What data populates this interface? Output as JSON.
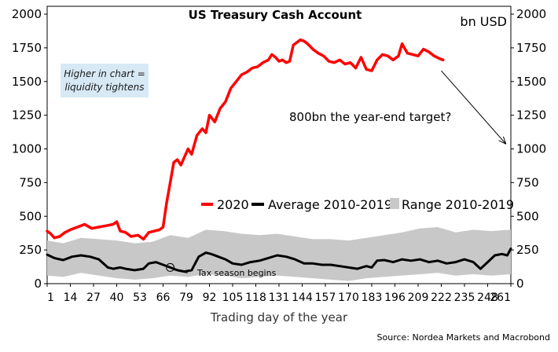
{
  "chart_data": {
    "type": "line",
    "title": "US Treasury Cash Account",
    "unit_label": "bn USD",
    "xlabel": "Trading day of the year",
    "source": "Source: Nordea Markets and Macrobond",
    "xlim": [
      1,
      261
    ],
    "ylim": [
      0,
      2000
    ],
    "y_ticks": [
      "0",
      "250",
      "500",
      "750",
      "1000",
      "1250",
      "1500",
      "1750",
      "2000"
    ],
    "x_ticks": [
      "1",
      "14",
      "27",
      "40",
      "53",
      "66",
      "79",
      "92",
      "105",
      "118",
      "131",
      "144",
      "157",
      "170",
      "183",
      "196",
      "209",
      "222",
      "235",
      "248",
      "261"
    ],
    "legend": {
      "position": "middle-right",
      "items": [
        {
          "label": "2020",
          "color": "#ff0000",
          "style": "line"
        },
        {
          "label": "Average 2010-2019",
          "color": "#000000",
          "style": "line"
        },
        {
          "label": "Range 2010-2019",
          "color": "#c8c8c8",
          "style": "box"
        }
      ]
    },
    "annotations": {
      "note": [
        "Higher in chart =",
        "liquidity tightens"
      ],
      "target": "800bn the year-end target?",
      "tax": "Tax season begins"
    },
    "series": [
      {
        "name": "2020",
        "color": "#ff0000",
        "points": [
          [
            1,
            390
          ],
          [
            3,
            370
          ],
          [
            5,
            340
          ],
          [
            8,
            350
          ],
          [
            11,
            380
          ],
          [
            14,
            400
          ],
          [
            18,
            420
          ],
          [
            22,
            440
          ],
          [
            26,
            410
          ],
          [
            30,
            420
          ],
          [
            34,
            430
          ],
          [
            38,
            440
          ],
          [
            40,
            460
          ],
          [
            42,
            390
          ],
          [
            45,
            380
          ],
          [
            48,
            350
          ],
          [
            52,
            360
          ],
          [
            55,
            330
          ],
          [
            58,
            380
          ],
          [
            61,
            390
          ],
          [
            64,
            400
          ],
          [
            66,
            420
          ],
          [
            68,
            600
          ],
          [
            70,
            750
          ],
          [
            72,
            900
          ],
          [
            74,
            920
          ],
          [
            76,
            880
          ],
          [
            78,
            940
          ],
          [
            80,
            1000
          ],
          [
            82,
            960
          ],
          [
            85,
            1100
          ],
          [
            88,
            1150
          ],
          [
            90,
            1120
          ],
          [
            92,
            1250
          ],
          [
            95,
            1200
          ],
          [
            98,
            1300
          ],
          [
            101,
            1350
          ],
          [
            104,
            1450
          ],
          [
            107,
            1500
          ],
          [
            110,
            1550
          ],
          [
            113,
            1570
          ],
          [
            116,
            1600
          ],
          [
            119,
            1610
          ],
          [
            122,
            1640
          ],
          [
            125,
            1660
          ],
          [
            127,
            1700
          ],
          [
            129,
            1680
          ],
          [
            131,
            1650
          ],
          [
            133,
            1660
          ],
          [
            135,
            1640
          ],
          [
            137,
            1650
          ],
          [
            139,
            1770
          ],
          [
            141,
            1790
          ],
          [
            143,
            1810
          ],
          [
            145,
            1800
          ],
          [
            147,
            1780
          ],
          [
            150,
            1740
          ],
          [
            153,
            1710
          ],
          [
            156,
            1690
          ],
          [
            159,
            1650
          ],
          [
            162,
            1640
          ],
          [
            165,
            1660
          ],
          [
            168,
            1630
          ],
          [
            171,
            1640
          ],
          [
            174,
            1600
          ],
          [
            177,
            1680
          ],
          [
            180,
            1590
          ],
          [
            183,
            1580
          ],
          [
            186,
            1660
          ],
          [
            189,
            1700
          ],
          [
            192,
            1690
          ],
          [
            195,
            1660
          ],
          [
            198,
            1690
          ],
          [
            200,
            1780
          ],
          [
            203,
            1710
          ],
          [
            206,
            1700
          ],
          [
            209,
            1690
          ],
          [
            212,
            1740
          ],
          [
            215,
            1720
          ],
          [
            218,
            1690
          ],
          [
            221,
            1670
          ],
          [
            223,
            1660
          ]
        ]
      },
      {
        "name": "Average 2010-2019",
        "color": "#000000",
        "points": [
          [
            1,
            215
          ],
          [
            5,
            190
          ],
          [
            10,
            175
          ],
          [
            15,
            200
          ],
          [
            20,
            210
          ],
          [
            25,
            200
          ],
          [
            30,
            180
          ],
          [
            35,
            120
          ],
          [
            38,
            110
          ],
          [
            42,
            120
          ],
          [
            45,
            110
          ],
          [
            50,
            100
          ],
          [
            55,
            110
          ],
          [
            58,
            150
          ],
          [
            62,
            160
          ],
          [
            66,
            140
          ],
          [
            70,
            120
          ],
          [
            74,
            100
          ],
          [
            78,
            90
          ],
          [
            82,
            100
          ],
          [
            86,
            200
          ],
          [
            90,
            230
          ],
          [
            93,
            220
          ],
          [
            97,
            200
          ],
          [
            101,
            180
          ],
          [
            105,
            150
          ],
          [
            110,
            140
          ],
          [
            115,
            160
          ],
          [
            120,
            170
          ],
          [
            125,
            190
          ],
          [
            130,
            210
          ],
          [
            135,
            200
          ],
          [
            140,
            180
          ],
          [
            145,
            150
          ],
          [
            150,
            150
          ],
          [
            155,
            140
          ],
          [
            160,
            140
          ],
          [
            165,
            130
          ],
          [
            170,
            120
          ],
          [
            175,
            110
          ],
          [
            180,
            130
          ],
          [
            183,
            120
          ],
          [
            186,
            170
          ],
          [
            190,
            175
          ],
          [
            195,
            160
          ],
          [
            200,
            180
          ],
          [
            205,
            170
          ],
          [
            210,
            180
          ],
          [
            215,
            160
          ],
          [
            220,
            170
          ],
          [
            225,
            150
          ],
          [
            230,
            160
          ],
          [
            235,
            180
          ],
          [
            240,
            160
          ],
          [
            244,
            110
          ],
          [
            248,
            160
          ],
          [
            252,
            210
          ],
          [
            256,
            220
          ],
          [
            259,
            210
          ],
          [
            261,
            260
          ]
        ]
      }
    ],
    "range_band": {
      "name": "Range 2010-2019",
      "color": "#c8c8c8",
      "x": [
        1,
        10,
        20,
        30,
        40,
        50,
        60,
        70,
        80,
        90,
        100,
        110,
        120,
        130,
        140,
        150,
        160,
        170,
        180,
        190,
        200,
        210,
        220,
        230,
        240,
        250,
        261
      ],
      "upper": [
        320,
        300,
        340,
        330,
        320,
        300,
        310,
        360,
        340,
        400,
        390,
        370,
        360,
        370,
        350,
        330,
        330,
        320,
        340,
        360,
        380,
        410,
        420,
        380,
        400,
        390,
        400
      ],
      "lower": [
        60,
        50,
        80,
        60,
        40,
        30,
        40,
        60,
        50,
        70,
        60,
        40,
        50,
        60,
        50,
        40,
        30,
        20,
        40,
        50,
        60,
        70,
        80,
        60,
        70,
        60,
        70
      ]
    },
    "arrow": {
      "from": [
        222,
        1580
      ],
      "to": [
        258,
        1040
      ]
    },
    "tax_marker": {
      "x": 70,
      "y": 120
    }
  }
}
